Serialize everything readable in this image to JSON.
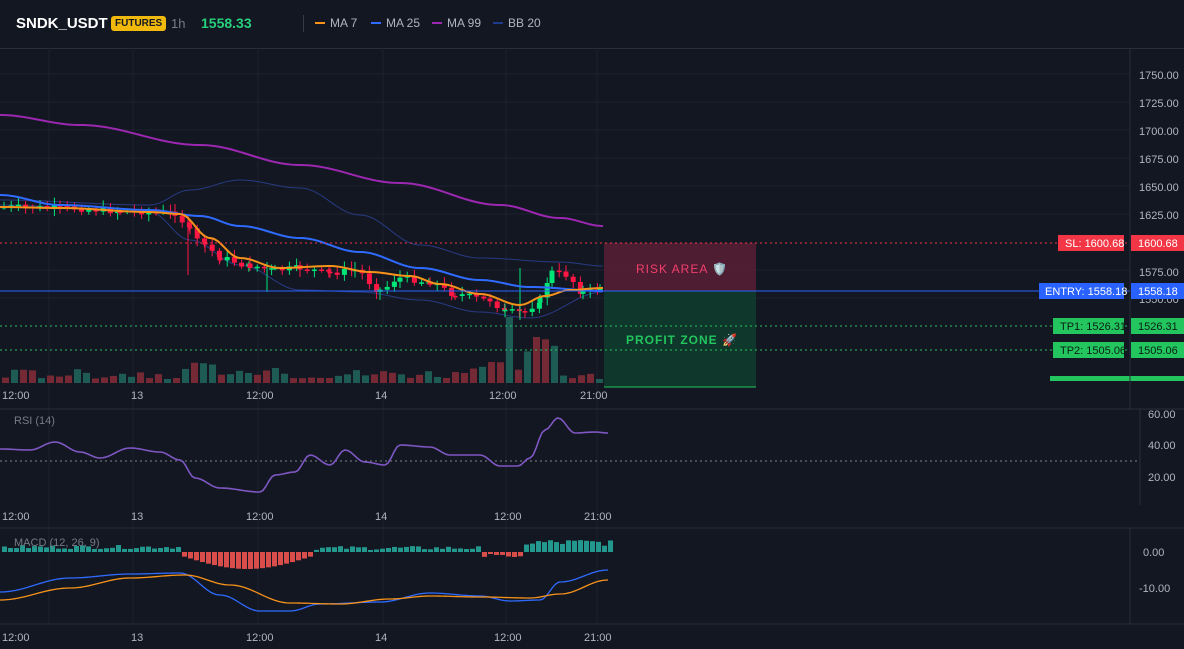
{
  "header": {
    "symbol": "SNDK_USDT",
    "badge": "FUTURES",
    "timeframe": "1h",
    "price": "1558.33",
    "legend": [
      {
        "label": "MA 7",
        "color": "#f7931a"
      },
      {
        "label": "MA 25",
        "color": "#2f6bff"
      },
      {
        "label": "MA 99",
        "color": "#9c27b0"
      },
      {
        "label": "BB 20",
        "color": "#1e3a8a"
      }
    ]
  },
  "price_axis": [
    "1750.00",
    "1725.00",
    "1700.00",
    "1675.00",
    "1650.00",
    "1625.00",
    "1575.00",
    "1550.00"
  ],
  "time_axis": [
    "12:00",
    "13",
    "12:00",
    "14",
    "12:00",
    "21:00"
  ],
  "levels": {
    "sl": {
      "label": "SL: 1600.68",
      "value": "1600.68",
      "color": "#f23645"
    },
    "entry": {
      "label": "ENTRY: 1558.18",
      "value": "1558.18",
      "color": "#2962ff"
    },
    "tp1": {
      "label": "TP1: 1526.31",
      "value": "1526.31",
      "color": "#22c55e"
    },
    "tp2": {
      "label": "TP2: 1505.06",
      "value": "1505.06",
      "color": "#22c55e"
    }
  },
  "zones": {
    "risk": "RISK AREA 🛡️",
    "profit": "PROFIT ZONE 🚀"
  },
  "rsi": {
    "label": "RSI (14)",
    "axis": [
      "60.00",
      "40.00",
      "20.00"
    ]
  },
  "macd": {
    "label": "MACD (12, 26, 9)",
    "axis": [
      "0.00",
      "-10.00"
    ]
  },
  "colors": {
    "up": "#26a69a",
    "down": "#ef5350",
    "up_bright": "#00e676",
    "down_bright": "#ff1744",
    "rsi": "#7e57c2"
  }
}
